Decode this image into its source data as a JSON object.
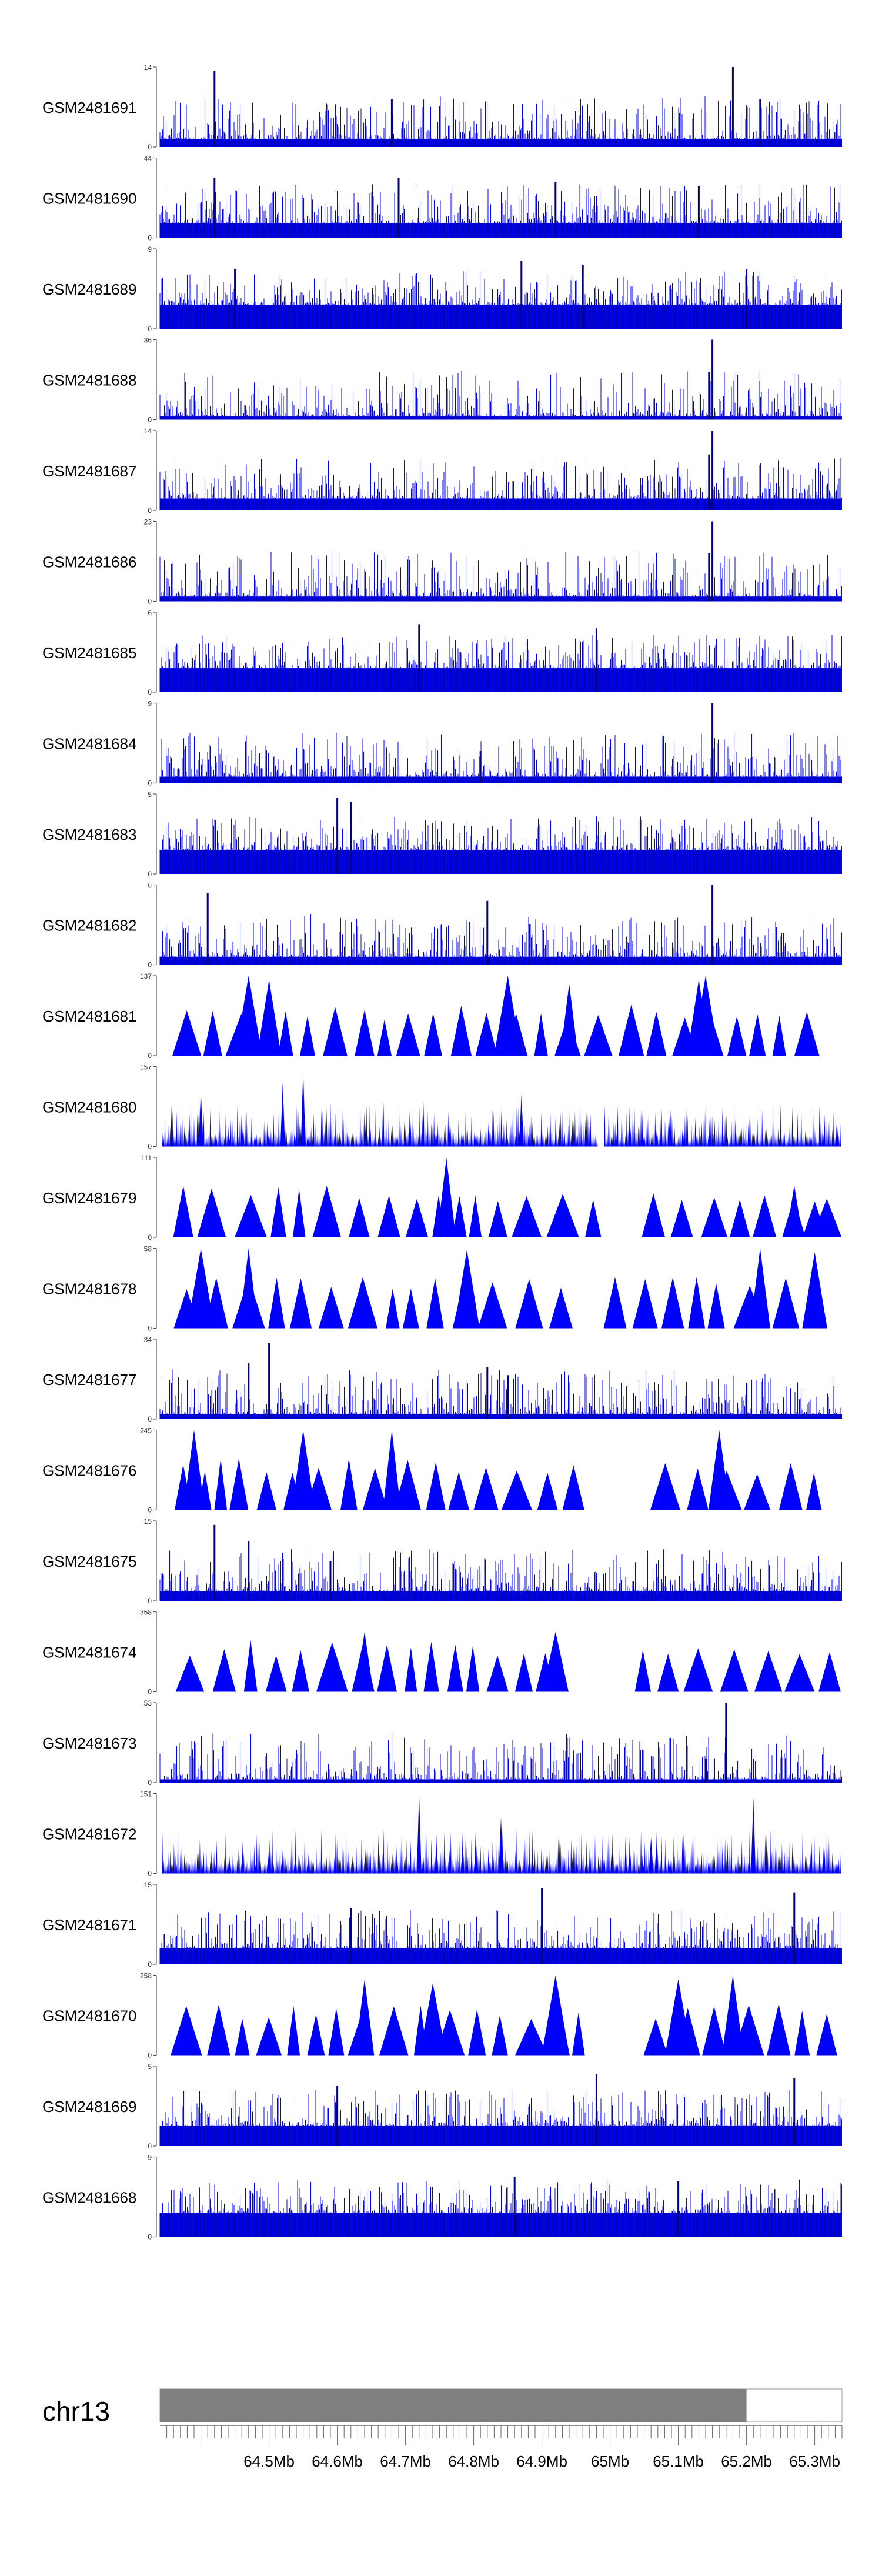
{
  "chart_data": {
    "type": "area",
    "title": "",
    "xlabel": "",
    "xaxis": {
      "unit": "Mb",
      "range": [
        64.34,
        65.34
      ],
      "tick_labels": [
        "64.5Mb",
        "64.6Mb",
        "64.7Mb",
        "64.8Mb",
        "64.9Mb",
        "65Mb",
        "65.1Mb",
        "65.2Mb",
        "65.3Mb"
      ],
      "tick_values": [
        64.5,
        64.6,
        64.7,
        64.8,
        64.9,
        65.0,
        65.1,
        65.2,
        65.3
      ]
    },
    "chromosome": {
      "label": "chr13",
      "shaded_range": [
        64.34,
        65.2
      ],
      "shade_color": "#808080"
    },
    "series_color": "#0000ff",
    "series_dark_color": "#000080",
    "series": [
      {
        "name": "GSM2481691",
        "ymax": 14,
        "style": "dense",
        "baseline": 0.1,
        "peaks": [
          [
            64.42,
            0.95
          ],
          [
            64.68,
            0.6
          ],
          [
            65.18,
            1.0
          ],
          [
            65.22,
            0.6
          ]
        ]
      },
      {
        "name": "GSM2481690",
        "ymax": 44,
        "style": "dense",
        "baseline": 0.18,
        "peaks": [
          [
            64.42,
            0.75
          ],
          [
            64.69,
            0.75
          ],
          [
            64.92,
            0.7
          ],
          [
            65.13,
            0.65
          ]
        ]
      },
      {
        "name": "GSM2481689",
        "ymax": 9,
        "style": "dense",
        "baseline": 0.3,
        "peaks": [
          [
            64.45,
            0.75
          ],
          [
            64.87,
            0.85
          ],
          [
            64.96,
            0.8
          ],
          [
            65.2,
            0.75
          ]
        ]
      },
      {
        "name": "GSM2481688",
        "ymax": 36,
        "style": "dense",
        "baseline": 0.04,
        "peaks": [
          [
            65.15,
            1.0
          ],
          [
            65.145,
            0.6
          ]
        ]
      },
      {
        "name": "GSM2481687",
        "ymax": 14,
        "style": "dense",
        "baseline": 0.15,
        "peaks": [
          [
            65.15,
            1.0
          ],
          [
            65.145,
            0.7
          ]
        ]
      },
      {
        "name": "GSM2481686",
        "ymax": 23,
        "style": "dense",
        "baseline": 0.06,
        "peaks": [
          [
            65.15,
            1.0
          ],
          [
            65.145,
            0.6
          ]
        ]
      },
      {
        "name": "GSM2481685",
        "ymax": 6,
        "style": "dense",
        "baseline": 0.3,
        "peaks": [
          [
            64.72,
            0.85
          ],
          [
            64.98,
            0.8
          ]
        ]
      },
      {
        "name": "GSM2481684",
        "ymax": 9,
        "style": "dense",
        "baseline": 0.08,
        "peaks": [
          [
            65.15,
            1.0
          ],
          [
            64.81,
            0.4
          ]
        ]
      },
      {
        "name": "GSM2481683",
        "ymax": 5,
        "style": "dense",
        "baseline": 0.3,
        "peaks": [
          [
            64.6,
            0.95
          ],
          [
            64.62,
            0.9
          ]
        ]
      },
      {
        "name": "GSM2481682",
        "ymax": 6,
        "style": "dense",
        "baseline": 0.1,
        "peaks": [
          [
            65.15,
            1.0
          ],
          [
            64.41,
            0.9
          ],
          [
            64.82,
            0.8
          ]
        ]
      },
      {
        "name": "GSM2481681",
        "ymax": 137,
        "style": "triangles",
        "gaps": [
          [
            64.98,
            64.99
          ]
        ],
        "peaks": [
          [
            64.47,
            1.0
          ],
          [
            64.5,
            0.95
          ],
          [
            64.85,
            1.0
          ],
          [
            65.14,
            1.0
          ],
          [
            65.13,
            0.95
          ],
          [
            64.94,
            0.9
          ]
        ]
      },
      {
        "name": "GSM2481680",
        "ymax": 157,
        "style": "sparse",
        "gaps": [
          [
            64.98,
            64.99
          ]
        ],
        "peaks": [
          [
            64.55,
            0.95
          ],
          [
            64.4,
            0.7
          ],
          [
            64.52,
            0.8
          ],
          [
            64.87,
            0.65
          ]
        ]
      },
      {
        "name": "GSM2481679",
        "ymax": 111,
        "style": "triangles",
        "gaps": [
          [
            64.99,
            65.02
          ]
        ],
        "peaks": [
          [
            64.76,
            1.0
          ],
          [
            65.27,
            0.65
          ],
          [
            65.3,
            0.45
          ]
        ]
      },
      {
        "name": "GSM2481678",
        "ymax": 58,
        "style": "triangles",
        "gaps": [
          [
            64.98,
            64.99
          ]
        ],
        "peaks": [
          [
            64.4,
            1.0
          ],
          [
            64.47,
            1.0
          ],
          [
            64.79,
            0.98
          ],
          [
            65.22,
            1.0
          ],
          [
            65.3,
            0.95
          ]
        ]
      },
      {
        "name": "GSM2481677",
        "ymax": 34,
        "style": "dense",
        "baseline": 0.06,
        "peaks": [
          [
            64.5,
            0.95
          ],
          [
            64.47,
            0.7
          ],
          [
            64.82,
            0.65
          ],
          [
            64.85,
            0.55
          ],
          [
            65.2,
            0.45
          ]
        ]
      },
      {
        "name": "GSM2481676",
        "ymax": 245,
        "style": "triangles",
        "gaps": [
          [
            65.0,
            65.04
          ]
        ],
        "peaks": [
          [
            64.39,
            1.0
          ],
          [
            64.55,
            1.0
          ],
          [
            64.68,
            1.0
          ],
          [
            65.16,
            1.0
          ]
        ]
      },
      {
        "name": "GSM2481675",
        "ymax": 15,
        "style": "dense",
        "baseline": 0.12,
        "peaks": [
          [
            64.42,
            0.95
          ],
          [
            64.47,
            0.75
          ],
          [
            64.59,
            0.5
          ]
        ]
      },
      {
        "name": "GSM2481674",
        "ymax": 358,
        "style": "triangles",
        "gaps": [
          [
            64.96,
            65.0
          ]
        ],
        "peaks": [
          [
            64.64,
            0.75
          ],
          [
            64.92,
            0.75
          ]
        ]
      },
      {
        "name": "GSM2481673",
        "ymax": 53,
        "style": "dense",
        "baseline": 0.04,
        "peaks": [
          [
            65.17,
            1.0
          ],
          [
            65.14,
            0.3
          ]
        ]
      },
      {
        "name": "GSM2481672",
        "ymax": 151,
        "style": "sparse",
        "peaks": [
          [
            64.72,
            1.0
          ],
          [
            65.21,
            0.95
          ],
          [
            64.84,
            0.7
          ],
          [
            65.06,
            0.45
          ]
        ]
      },
      {
        "name": "GSM2481671",
        "ymax": 15,
        "style": "dense",
        "baseline": 0.2,
        "peaks": [
          [
            64.9,
            0.95
          ],
          [
            65.27,
            0.9
          ],
          [
            64.62,
            0.7
          ]
        ]
      },
      {
        "name": "GSM2481670",
        "ymax": 258,
        "style": "triangles",
        "gaps": [
          [
            65.0,
            65.03
          ]
        ],
        "peaks": [
          [
            64.92,
            1.0
          ],
          [
            65.18,
            1.0
          ],
          [
            65.1,
            0.95
          ],
          [
            64.64,
            0.95
          ],
          [
            64.74,
            0.9
          ]
        ]
      },
      {
        "name": "GSM2481669",
        "ymax": 5,
        "style": "dense",
        "baseline": 0.25,
        "peaks": [
          [
            64.98,
            0.9
          ],
          [
            65.27,
            0.85
          ],
          [
            64.6,
            0.75
          ]
        ]
      },
      {
        "name": "GSM2481668",
        "ymax": 9,
        "style": "dense",
        "baseline": 0.3,
        "peaks": [
          [
            64.86,
            0.75
          ],
          [
            65.1,
            0.7
          ]
        ]
      }
    ]
  }
}
